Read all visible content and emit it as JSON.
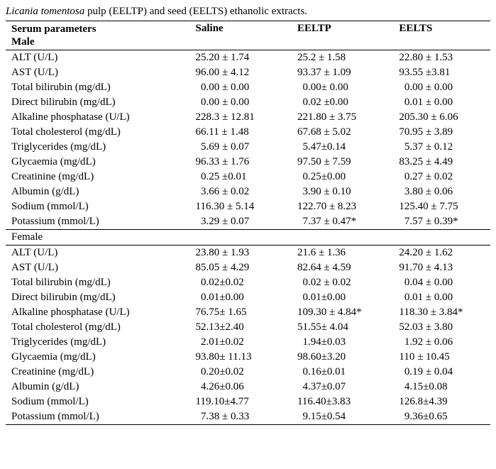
{
  "caption_prefix": "Licania tomentosa",
  "caption_rest": " pulp (EELTP) and seed (EELTS) ethanolic extracts.",
  "header": {
    "param_line1": "Serum parameters",
    "param_line2": "Male",
    "col1": "Saline",
    "col2": "EELTP",
    "col3": "EELTS"
  },
  "male_rows": [
    {
      "p": "ALT (U/L)",
      "s": "25.20 ± 1.74",
      "e1": "25.2 ± 1.58",
      "e2": "22.80 ± 1.53"
    },
    {
      "p": "AST (U/L)",
      "s": "96.00 ± 4.12",
      "e1": "93.37 ± 1.09",
      "e2": "93.55 ±3.81"
    },
    {
      "p": "Total bilirubin (mg/dL)",
      "s": "  0.00 ± 0.00",
      "e1": "  0.00± 0.00",
      "e2": "  0.00 ± 0.00"
    },
    {
      "p": "Direct bilirubin (mg/dL)",
      "s": "  0.00 ± 0.00",
      "e1": "  0.02 ±0.00",
      "e2": "  0.01 ± 0.00"
    },
    {
      "p": "Alkaline phosphatase (U/L)",
      "s": "228.3 ± 12.81",
      "e1": "221.80 ± 3.75",
      "e2": "205.30 ± 6.06"
    },
    {
      "p": "Total cholesterol (mg/dL)",
      "s": "66.11 ± 1.48",
      "e1": "67.68 ± 5.02",
      "e2": "70.95 ± 3.89"
    },
    {
      "p": "Triglycerides (mg/dL)",
      "s": "  5.69 ± 0.07",
      "e1": "  5.47±0.14",
      "e2": "  5.37 ± 0.12"
    },
    {
      "p": "Glycaemia (mg/dL)",
      "s": "96.33 ± 1.76",
      "e1": "97.50 ± 7.59",
      "e2": "83.25 ± 4.49"
    },
    {
      "p": "Creatinine (mg/dL)",
      "s": "  0.25 ±0.01",
      "e1": "  0.25±0.00",
      "e2": "  0.27 ± 0.02"
    },
    {
      "p": "Albumin (g/dL)",
      "s": "  3.66 ± 0.02",
      "e1": "  3.90 ± 0.10",
      "e2": "  3.80 ± 0.06"
    },
    {
      "p": "Sodium (mmol/L)",
      "s": "116.30 ± 5.14",
      "e1": "122.70 ± 8.23",
      "e2": "125.40 ± 7.75"
    },
    {
      "p": "Potassium (mmol/L)",
      "s": "  3.29 ± 0.07",
      "e1": "  7.37 ± 0.47*",
      "e2": "  7.57 ± 0.39*"
    }
  ],
  "female_label": "Female",
  "female_rows": [
    {
      "p": "ALT (U/L)",
      "s": "23.80 ± 1.93",
      "e1": "21.6 ± 1.36",
      "e2": "24.20 ± 1.62"
    },
    {
      "p": "AST (U/L)",
      "s": "85.05 ± 4.29",
      "e1": "82.64 ± 4.59",
      "e2": "91.70 ± 4.13"
    },
    {
      "p": "Total bilirubin (mg/dL)",
      "s": "  0.02±0.02",
      "e1": "  0.02 ± 0.02",
      "e2": "  0.04 ± 0.00"
    },
    {
      "p": "Direct bilirubin (mg/dL)",
      "s": "  0.01±0.00",
      "e1": "  0.01±0.00",
      "e2": "  0.01 ± 0.00"
    },
    {
      "p": "Alkaline phosphatase (U/L)",
      "s": "76.75± 1.65",
      "e1": "109.30 ± 4.84*",
      "e2": "118.30 ± 3.84*"
    },
    {
      "p": "Total cholesterol (mg/dL)",
      "s": "52.13±2.40",
      "e1": "51.55± 4.04",
      "e2": "52.03 ± 3.80"
    },
    {
      "p": "Triglycerides (mg/dL)",
      "s": "  2.01±0.02",
      "e1": "  1.94±0.03",
      "e2": "  1.92 ± 0.06"
    },
    {
      "p": "Glycaemia (mg/dL)",
      "s": "93.80± 11.13",
      "e1": "98.60±3.20",
      "e2": "110 ± 10.45"
    },
    {
      "p": "Creatinine (mg/dL)",
      "s": "  0.20±0.02",
      "e1": "  0.16±0.01",
      "e2": "  0.19 ± 0.04"
    },
    {
      "p": "Albumin (g/dL)",
      "s": "  4.26±0.06",
      "e1": "  4.37±0.07",
      "e2": "  4.15±0.08"
    },
    {
      "p": "Sodium (mmol/L)",
      "s": "119.10±4.77",
      "e1": "116.40±3.83",
      "e2": "126.8±4.39"
    },
    {
      "p": "Potassium (mmol/L)",
      "s": "  7.38 ± 0.33",
      "e1": "  9.15±0.54",
      "e2": "  9.36±0.65"
    }
  ],
  "style": {
    "font_family": "Times New Roman",
    "font_size_pt": 11,
    "text_color": "#000000",
    "background": "#ffffff",
    "border_color": "#000000",
    "col_widths_pct": [
      38,
      21,
      21,
      20
    ]
  }
}
